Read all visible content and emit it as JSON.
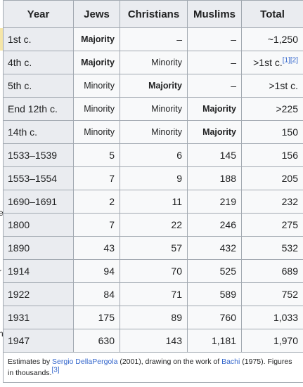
{
  "gutter_chars": [
    {
      "id": "g1",
      "text": "e",
      "top": 296
    },
    {
      "id": "g2",
      "text": "r",
      "top": 380
    },
    {
      "id": "g3",
      "text": "n",
      "top": 468
    }
  ],
  "table": {
    "headers": [
      "Year",
      "Jews",
      "Christians",
      "Muslims",
      "Total"
    ],
    "rows": [
      {
        "year": "1st c.",
        "jews": {
          "text": "Majority",
          "bold": true
        },
        "christians": {
          "text": "–"
        },
        "muslims": {
          "text": "–"
        },
        "total": {
          "text": "~1,250"
        }
      },
      {
        "year": "4th c.",
        "jews": {
          "text": "Majority",
          "bold": true
        },
        "christians": {
          "text": "Minority"
        },
        "muslims": {
          "text": "–"
        },
        "total": {
          "text": ">1st c.",
          "refs": [
            "1",
            "2"
          ]
        }
      },
      {
        "year": "5th c.",
        "jews": {
          "text": "Minority"
        },
        "christians": {
          "text": "Majority",
          "bold": true
        },
        "muslims": {
          "text": "–"
        },
        "total": {
          "text": ">1st c."
        }
      },
      {
        "year": "End 12th c.",
        "jews": {
          "text": "Minority"
        },
        "christians": {
          "text": "Minority"
        },
        "muslims": {
          "text": "Majority",
          "bold": true
        },
        "total": {
          "text": ">225"
        }
      },
      {
        "year": "14th c.",
        "jews": {
          "text": "Minority"
        },
        "christians": {
          "text": "Minority"
        },
        "muslims": {
          "text": "Majority",
          "bold": true
        },
        "total": {
          "text": "150"
        }
      },
      {
        "year": "1533–1539",
        "jews": {
          "text": "5"
        },
        "christians": {
          "text": "6"
        },
        "muslims": {
          "text": "145"
        },
        "total": {
          "text": "156"
        }
      },
      {
        "year": "1553–1554",
        "jews": {
          "text": "7"
        },
        "christians": {
          "text": "9"
        },
        "muslims": {
          "text": "188"
        },
        "total": {
          "text": "205"
        }
      },
      {
        "year": "1690–1691",
        "jews": {
          "text": "2"
        },
        "christians": {
          "text": "11"
        },
        "muslims": {
          "text": "219"
        },
        "total": {
          "text": "232"
        }
      },
      {
        "year": "1800",
        "jews": {
          "text": "7"
        },
        "christians": {
          "text": "22"
        },
        "muslims": {
          "text": "246"
        },
        "total": {
          "text": "275"
        }
      },
      {
        "year": "1890",
        "jews": {
          "text": "43"
        },
        "christians": {
          "text": "57"
        },
        "muslims": {
          "text": "432"
        },
        "total": {
          "text": "532"
        }
      },
      {
        "year": "1914",
        "jews": {
          "text": "94"
        },
        "christians": {
          "text": "70"
        },
        "muslims": {
          "text": "525"
        },
        "total": {
          "text": "689"
        }
      },
      {
        "year": "1922",
        "jews": {
          "text": "84"
        },
        "christians": {
          "text": "71"
        },
        "muslims": {
          "text": "589"
        },
        "total": {
          "text": "752"
        }
      },
      {
        "year": "1931",
        "jews": {
          "text": "175"
        },
        "christians": {
          "text": "89"
        },
        "muslims": {
          "text": "760"
        },
        "total": {
          "text": "1,033"
        }
      },
      {
        "year": "1947",
        "jews": {
          "text": "630"
        },
        "christians": {
          "text": "143"
        },
        "muslims": {
          "text": "1,181"
        },
        "total": {
          "text": "1,970"
        }
      }
    ],
    "footnote": {
      "prefix": "Estimates by ",
      "author_link": "Sergio DellaPergola",
      "middle": " (2001), drawing on the work of ",
      "source_link": "Bachi",
      "suffix": " (1975). Figures in thousands.",
      "ref": "3"
    }
  }
}
